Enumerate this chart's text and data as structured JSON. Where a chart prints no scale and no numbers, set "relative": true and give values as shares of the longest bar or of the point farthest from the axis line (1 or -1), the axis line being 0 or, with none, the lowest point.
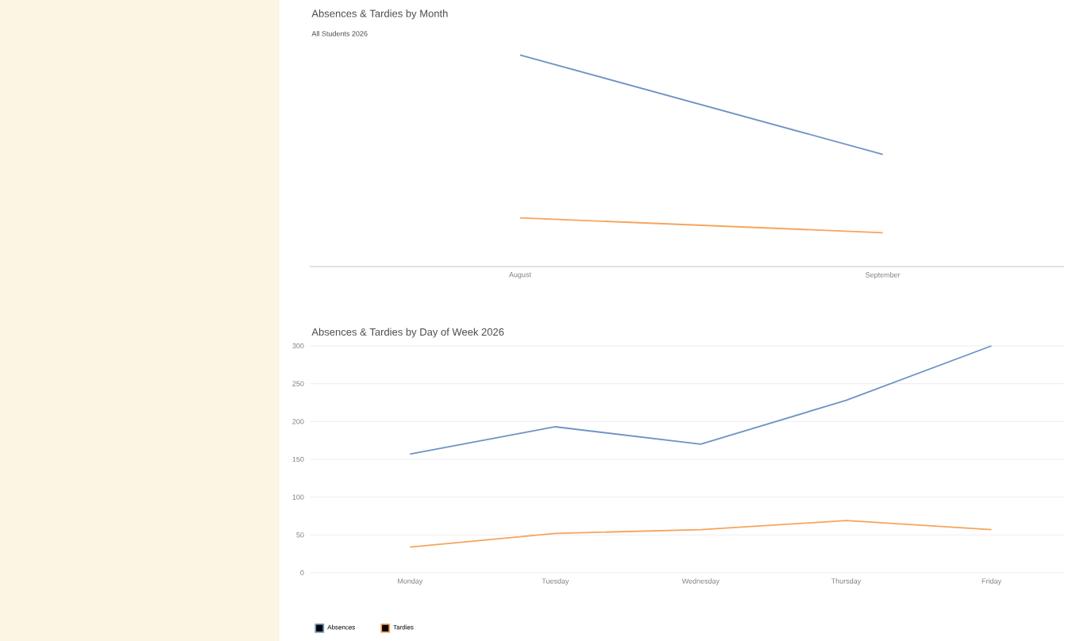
{
  "chart_data": [
    {
      "type": "line",
      "title": "Absences & Tardies by Month",
      "subtitle": "All Students 2026",
      "categories": [
        "August",
        "September"
      ],
      "relative": true,
      "grid": false,
      "legend": false,
      "tick_labels": "x",
      "series": [
        {
          "color": "#6f93c4",
          "values": [
            1,
            0.53
          ]
        },
        {
          "color": "#f6a45c",
          "values": [
            0.23,
            0.16
          ]
        }
      ]
    },
    {
      "type": "line",
      "title": "Absences & Tardies by Day of Week 2026",
      "categories": [
        "Monday",
        "Tuesday",
        "Wednesday",
        "Thursday",
        "Friday"
      ],
      "ylim": [
        0,
        300
      ],
      "yticks": [
        0,
        50,
        100,
        150,
        200,
        250,
        300
      ],
      "grid": "y",
      "legend": "bottom left",
      "series": [
        {
          "name": "Absences",
          "color": "#6f93c4",
          "values": [
            157,
            193,
            170,
            228,
            300
          ]
        },
        {
          "name": "Tardies",
          "color": "#f6a45c",
          "values": [
            34,
            52,
            57,
            69,
            57
          ]
        }
      ]
    }
  ]
}
